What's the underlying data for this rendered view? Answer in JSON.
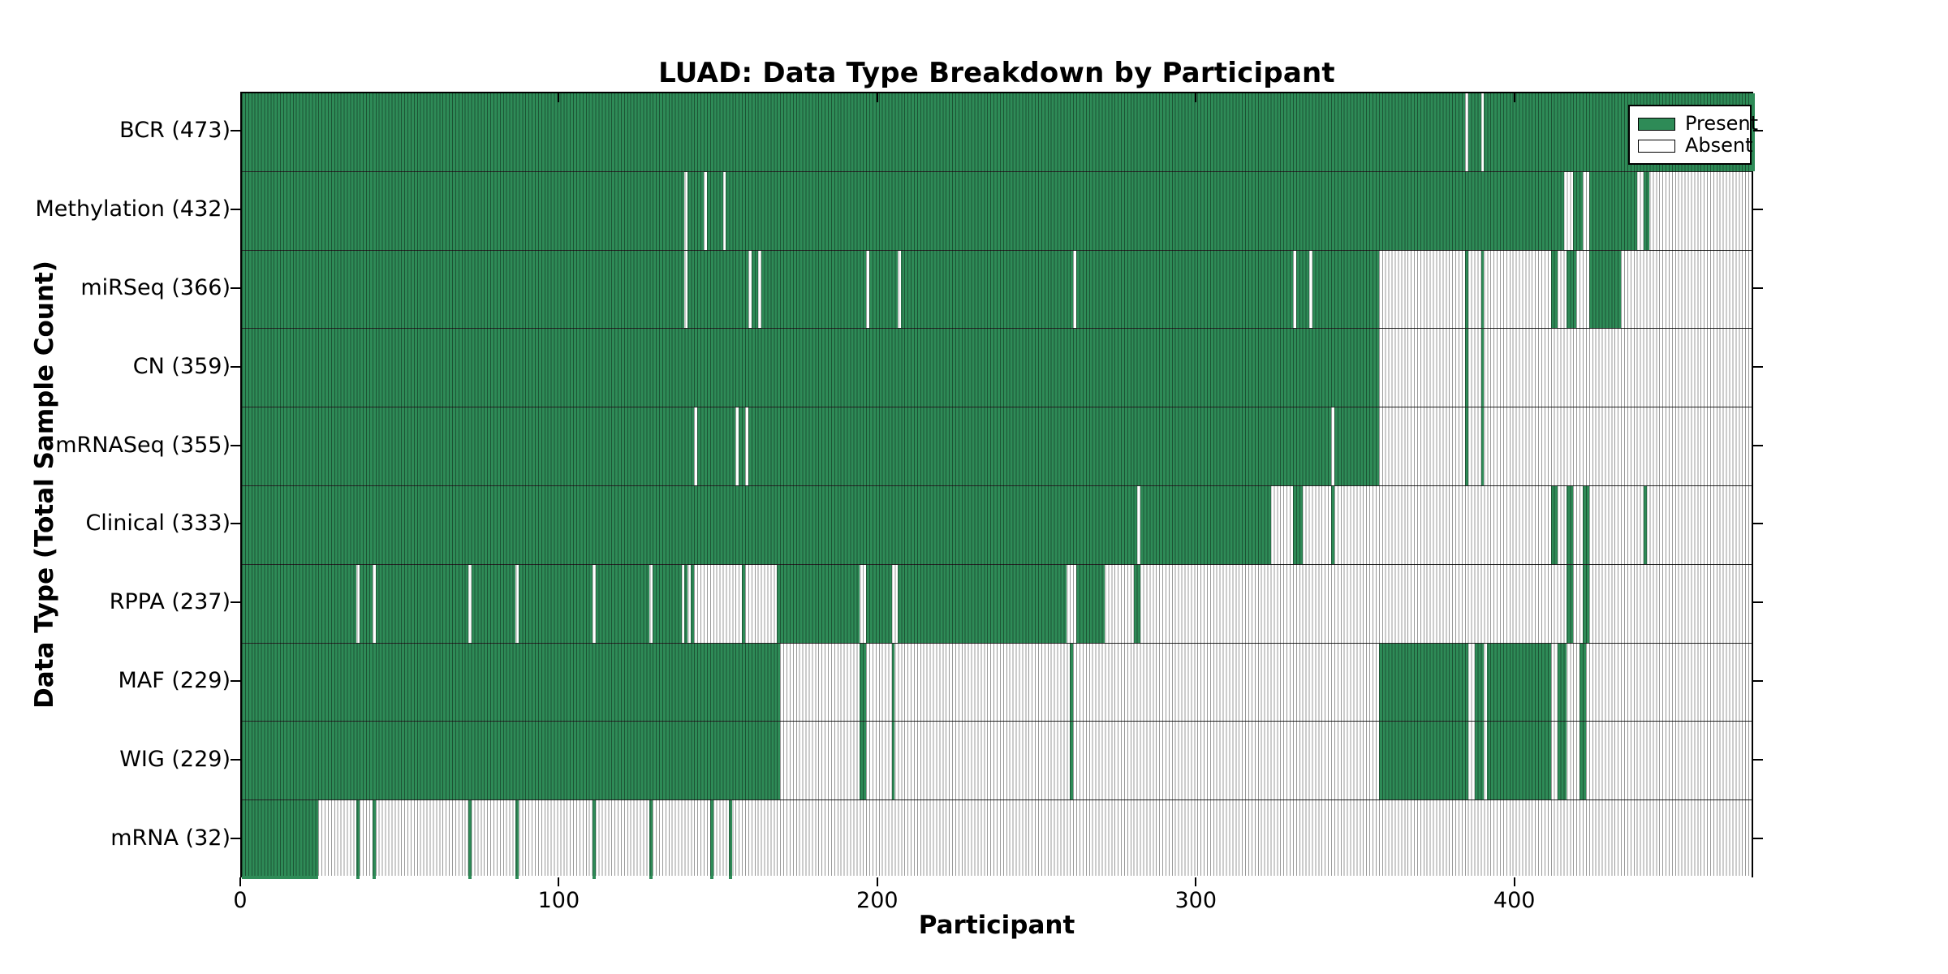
{
  "title": "LUAD: Data Type Breakdown by Participant",
  "xlabel": "Participant",
  "ylabel": "Data Type (Total Sample Count)",
  "legend": {
    "present": "Present",
    "absent": "Absent"
  },
  "colors": {
    "present": "#2e8b57",
    "absent": "#ffffff",
    "edge": "#000000"
  },
  "chart_data": {
    "type": "heatmap",
    "title": "LUAD: Data Type Breakdown by Participant",
    "xlabel": "Participant",
    "ylabel": "Data Type (Total Sample Count)",
    "x_ticks": [
      0,
      100,
      200,
      300,
      400
    ],
    "x_range": [
      0,
      475
    ],
    "legend_entries": [
      "Present",
      "Absent"
    ],
    "legend_position": "upper right",
    "grid": false,
    "rows": [
      {
        "label": "BCR (473)",
        "name": "BCR",
        "count": 473,
        "present_runs": [
          [
            0,
            384
          ],
          [
            385,
            389
          ],
          [
            390,
            475
          ]
        ]
      },
      {
        "label": "Methylation (432)",
        "name": "Methylation",
        "count": 432,
        "present_runs": [
          [
            0,
            139
          ],
          [
            140,
            145
          ],
          [
            146,
            151
          ],
          [
            152,
            415
          ],
          [
            418,
            421
          ],
          [
            423,
            438
          ],
          [
            440,
            442
          ]
        ]
      },
      {
        "label": "miRSeq (366)",
        "name": "miRSeq",
        "count": 366,
        "present_runs": [
          [
            0,
            139
          ],
          [
            140,
            159
          ],
          [
            160,
            162
          ],
          [
            163,
            196
          ],
          [
            197,
            206
          ],
          [
            207,
            261
          ],
          [
            262,
            330
          ],
          [
            331,
            335
          ],
          [
            336,
            357
          ],
          [
            384,
            385
          ],
          [
            389,
            390
          ],
          [
            411,
            413
          ],
          [
            416,
            419
          ],
          [
            423,
            433
          ]
        ]
      },
      {
        "label": "CN (359)",
        "name": "CN",
        "count": 359,
        "present_runs": [
          [
            0,
            357
          ],
          [
            384,
            385
          ],
          [
            389,
            390
          ]
        ]
      },
      {
        "label": "mRNASeq (355)",
        "name": "mRNASeq",
        "count": 355,
        "present_runs": [
          [
            0,
            142
          ],
          [
            143,
            155
          ],
          [
            156,
            158
          ],
          [
            159,
            342
          ],
          [
            343,
            357
          ],
          [
            384,
            385
          ],
          [
            389,
            390
          ]
        ]
      },
      {
        "label": "Clinical (333)",
        "name": "Clinical",
        "count": 333,
        "present_runs": [
          [
            0,
            281
          ],
          [
            282,
            323
          ],
          [
            330,
            333
          ],
          [
            342,
            343
          ],
          [
            411,
            413
          ],
          [
            416,
            418
          ],
          [
            421,
            423
          ],
          [
            440,
            441
          ]
        ]
      },
      {
        "label": "RPPA (237)",
        "name": "RPPA",
        "count": 237,
        "present_runs": [
          [
            0,
            36
          ],
          [
            37,
            41
          ],
          [
            42,
            71
          ],
          [
            72,
            86
          ],
          [
            87,
            110
          ],
          [
            111,
            128
          ],
          [
            129,
            138
          ],
          [
            139,
            140
          ],
          [
            141,
            142
          ],
          [
            157,
            158
          ],
          [
            168,
            194
          ],
          [
            196,
            204
          ],
          [
            206,
            259
          ],
          [
            262,
            271
          ],
          [
            280,
            282
          ],
          [
            416,
            418
          ],
          [
            421,
            423
          ]
        ]
      },
      {
        "label": "MAF (229)",
        "name": "MAF",
        "count": 229,
        "present_runs": [
          [
            0,
            169
          ],
          [
            194,
            196
          ],
          [
            204,
            205
          ],
          [
            260,
            261
          ],
          [
            357,
            385
          ],
          [
            387,
            390
          ],
          [
            391,
            411
          ],
          [
            413,
            416
          ],
          [
            420,
            422
          ]
        ]
      },
      {
        "label": "WIG (229)",
        "name": "WIG",
        "count": 229,
        "present_runs": [
          [
            0,
            169
          ],
          [
            194,
            196
          ],
          [
            204,
            205
          ],
          [
            260,
            261
          ],
          [
            357,
            385
          ],
          [
            387,
            390
          ],
          [
            391,
            411
          ],
          [
            413,
            416
          ],
          [
            420,
            422
          ]
        ]
      },
      {
        "label": "mRNA (32)",
        "name": "mRNA",
        "count": 32,
        "present_runs": [
          [
            0,
            24
          ],
          [
            36,
            37
          ],
          [
            41,
            42
          ],
          [
            71,
            72
          ],
          [
            86,
            87
          ],
          [
            110,
            111
          ],
          [
            128,
            129
          ],
          [
            147,
            148
          ],
          [
            153,
            154
          ]
        ]
      }
    ]
  }
}
